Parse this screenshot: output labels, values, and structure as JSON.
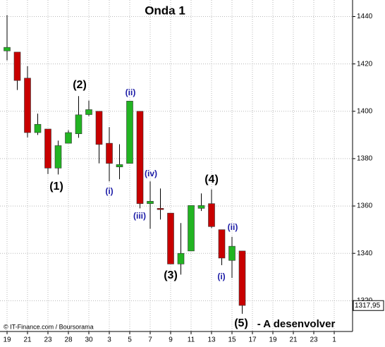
{
  "chart_data": {
    "type": "candlestick",
    "title": "Onda 1",
    "categories": [
      "19",
      null,
      "21",
      null,
      "23",
      null,
      "28",
      null,
      "30",
      null,
      "3",
      null,
      "5",
      null,
      "7",
      null,
      "9",
      null,
      "11",
      null,
      "13",
      null,
      "15",
      null,
      "17",
      null,
      "19",
      null,
      "21",
      null,
      "23",
      null,
      "1",
      null
    ],
    "open": [
      1425.5,
      1425,
      1414,
      1391,
      1392.5,
      1376,
      1386.5,
      1390.5,
      1398.6,
      1400,
      1386.5,
      1376.5,
      1378,
      1400,
      1361,
      1359,
      1357,
      1335.5,
      1341,
      1359,
      1361,
      1350,
      1337,
      1341,
      null,
      null,
      null,
      null,
      null,
      null,
      null,
      null,
      null,
      null
    ],
    "high": [
      1440.6,
      1425,
      1419,
      1399,
      1392.5,
      1387.6,
      1392,
      1406.4,
      1404.5,
      1400,
      1393.3,
      1386.1,
      1404.3,
      1400,
      1370.4,
      1367.4,
      1357,
      1352.8,
      1360.2,
      1365.3,
      1367,
      1350,
      1347,
      1341,
      null,
      null,
      null,
      null,
      null,
      null,
      null,
      null,
      null,
      null
    ],
    "low": [
      1421.5,
      1409,
      1389,
      1390,
      1373.5,
      1373.3,
      1386.5,
      1388.8,
      1398,
      1378,
      1370.4,
      1371.3,
      1378,
      1359,
      1350.4,
      1354.3,
      1335.5,
      1331,
      1341,
      1357.9,
      1350.7,
      1335,
      1329.6,
      1314.5,
      null,
      null,
      null,
      null,
      null,
      null,
      null,
      null,
      null,
      null
    ],
    "close": [
      1427,
      1413,
      1391,
      1394.5,
      1376,
      1385.5,
      1391,
      1398.5,
      1400.7,
      1386,
      1378,
      1377.5,
      1404.3,
      1361,
      1362,
      1358.5,
      1335.5,
      1340,
      1360.2,
      1360.2,
      1351.3,
      1338,
      1343,
      1318,
      null,
      null,
      null,
      null,
      null,
      null,
      null,
      null,
      null,
      null
    ],
    "up_color": "#22b422",
    "down_color": "#c80000",
    "ylim": [
      1307,
      1447
    ],
    "yticks": [
      1320,
      1340,
      1360,
      1380,
      1400,
      1420,
      1440
    ],
    "grid": true,
    "last_price": {
      "value": 1317.95,
      "label": "1317,95"
    },
    "annotations": [
      {
        "text": "(1)",
        "color": "#000000"
      },
      {
        "text": "(2)",
        "color": "#000000"
      },
      {
        "text": "(i)",
        "color": "#1a1aa6"
      },
      {
        "text": "(ii)",
        "color": "#1a1aa6"
      },
      {
        "text": "(iii)",
        "color": "#1a1aa6"
      },
      {
        "text": "(iv)",
        "color": "#1a1aa6"
      },
      {
        "text": "(3)",
        "color": "#000000"
      },
      {
        "text": "(4)",
        "color": "#000000"
      },
      {
        "text": "(ii)",
        "color": "#1a1aa6"
      },
      {
        "text": "(i)",
        "color": "#1a1aa6"
      },
      {
        "text": "(5)",
        "color": "#000000"
      },
      {
        "text": "- A desenvolver",
        "color": "#000000"
      }
    ],
    "source": "© IT-Finance.com / Boursorama"
  }
}
